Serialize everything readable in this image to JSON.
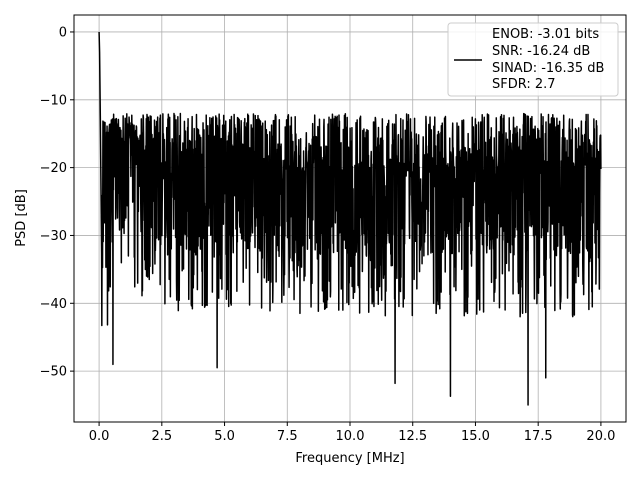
{
  "chart_data": {
    "type": "line",
    "xlabel": "Frequency [MHz]",
    "ylabel": "PSD [dB]",
    "xlim": [
      -1.0,
      21.0
    ],
    "ylim": [
      -57.5,
      2.5
    ],
    "xticks": [
      0.0,
      2.5,
      5.0,
      7.5,
      10.0,
      12.5,
      15.0,
      17.5,
      20.0
    ],
    "xtick_labels": [
      "0.0",
      "2.5",
      "5.0",
      "7.5",
      "10.0",
      "12.5",
      "15.0",
      "17.5",
      "20.0"
    ],
    "yticks": [
      0,
      -10,
      -20,
      -30,
      -40,
      -50
    ],
    "ytick_labels": [
      "0",
      "−10",
      "−20",
      "−30",
      "−40",
      "−50"
    ],
    "grid": true,
    "line_color": "#000000",
    "legend": {
      "position": "upper-right",
      "entries": [
        "ENOB: -3.01 bits",
        "SNR: -16.24 dB",
        "SINAD: -16.35 dB",
        "SFDR: 2.7"
      ]
    },
    "series": [
      {
        "approx_profile": [
          {
            "x": 0.0,
            "y": 0.0
          },
          {
            "x": 0.02,
            "y": -3.0
          },
          {
            "x": 0.05,
            "y": -13.0
          },
          {
            "x": 0.1,
            "y": -32.5
          },
          {
            "x": 0.5,
            "y": -22.0
          },
          {
            "x": 2.5,
            "y": -24.0
          },
          {
            "x": 10.0,
            "y": -25.0
          },
          {
            "x": 20.0,
            "y": -25.0
          }
        ],
        "notable_minima": [
          {
            "x": 0.55,
            "y": -49.0
          },
          {
            "x": 4.7,
            "y": -49.5
          },
          {
            "x": 11.8,
            "y": -51.8
          },
          {
            "x": 14.0,
            "y": -53.7
          },
          {
            "x": 17.1,
            "y": -55.0
          },
          {
            "x": 17.8,
            "y": -51.0
          }
        ],
        "approx_upper_envelope": -13.0,
        "approx_lower_envelope": -40.0
      }
    ]
  }
}
